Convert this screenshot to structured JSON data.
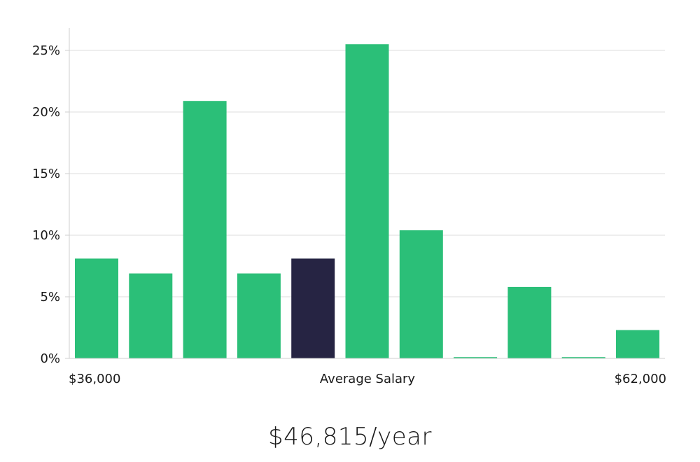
{
  "chart_data": {
    "type": "bar",
    "title": "",
    "xlabel": "Average Salary",
    "ylabel": "",
    "x_min_label": "$36,000",
    "x_max_label": "$62,000",
    "ylim": [
      0,
      27
    ],
    "yticks": [
      0,
      5,
      10,
      15,
      20,
      25
    ],
    "ytick_labels": [
      "0%",
      "5%",
      "10%",
      "15%",
      "20%",
      "25%"
    ],
    "values": [
      8.1,
      6.9,
      20.9,
      6.9,
      8.1,
      25.5,
      10.4,
      0.1,
      5.8,
      0.1,
      2.3
    ],
    "highlight_index": 4,
    "colors": {
      "bar": "#2bbf78",
      "highlight": "#262443"
    }
  },
  "headline": "$46,815/year"
}
